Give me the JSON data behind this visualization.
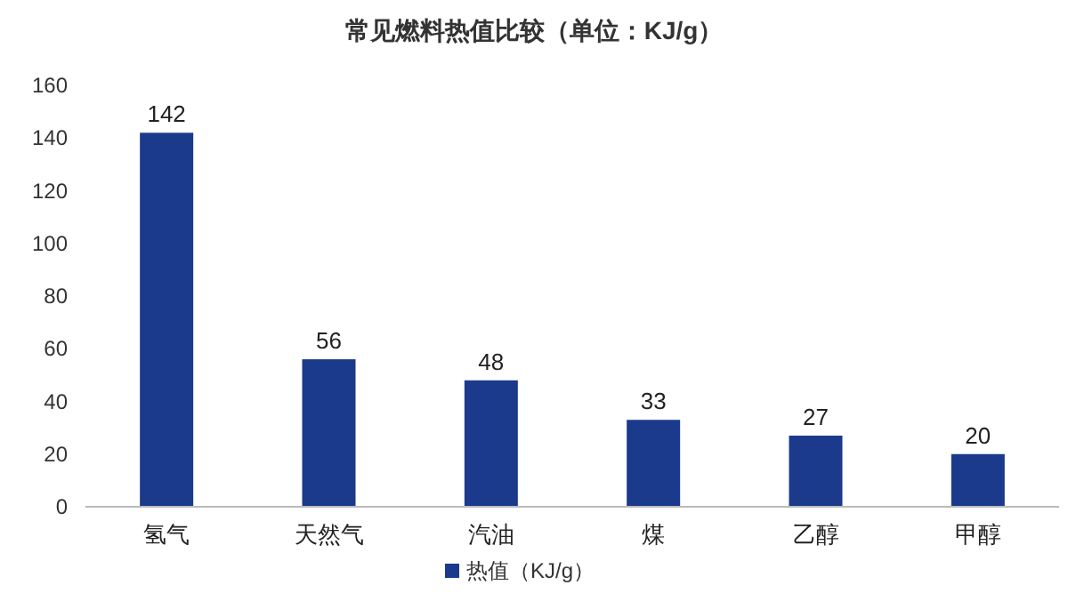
{
  "chart_data": {
    "type": "bar",
    "title": "常见燃料热值比较（单位：KJ/g）",
    "categories": [
      "氢气",
      "天然气",
      "汽油",
      "煤",
      "乙醇",
      "甲醇"
    ],
    "series": [
      {
        "name": "热值（KJ/g）",
        "color": "#1b3a8c",
        "values": [
          142,
          56,
          48,
          33,
          27,
          20
        ]
      }
    ],
    "ylim": [
      0,
      160
    ],
    "yticks": [
      0,
      20,
      40,
      60,
      80,
      100,
      120,
      140,
      160
    ],
    "data_labels": true,
    "legend": "bottom",
    "grid": false
  }
}
